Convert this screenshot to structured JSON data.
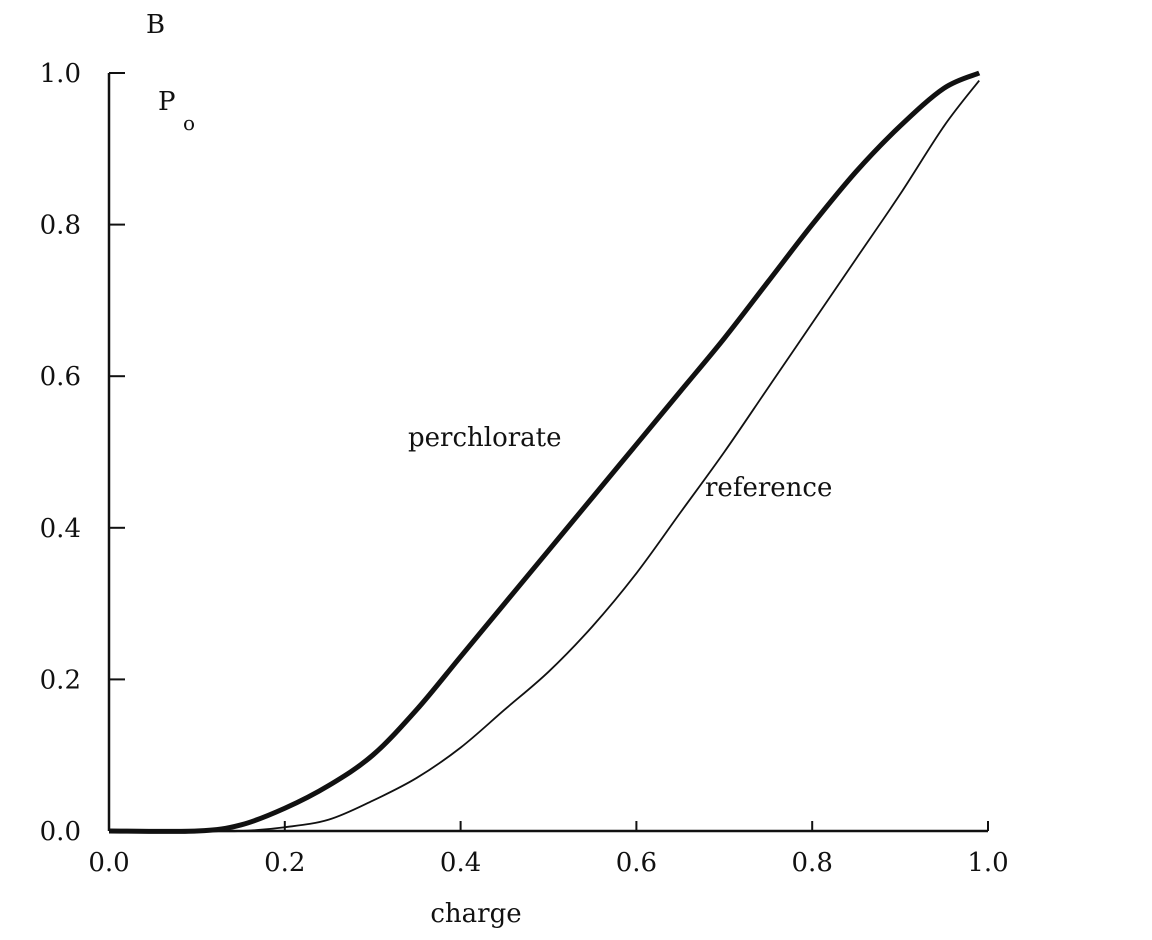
{
  "chart_data": {
    "type": "line",
    "panel_label": "B",
    "xlabel": "charge",
    "ylabel": "P",
    "ylabel_subscript": "o",
    "xlim": [
      0,
      1.0
    ],
    "ylim": [
      0,
      1.0
    ],
    "xticks": [
      "0.0",
      "0.2",
      "0.4",
      "0.6",
      "0.8",
      "1.0"
    ],
    "yticks": [
      "0.0",
      "0.2",
      "0.4",
      "0.6",
      "0.8",
      "1.0"
    ],
    "grid": false,
    "x": [
      0.0,
      0.1,
      0.15,
      0.2,
      0.25,
      0.3,
      0.35,
      0.4,
      0.45,
      0.5,
      0.55,
      0.6,
      0.65,
      0.7,
      0.75,
      0.8,
      0.85,
      0.9,
      0.95,
      0.99
    ],
    "series": [
      {
        "name": "perchlorate",
        "values": [
          0,
          0.0,
          0.008,
          0.03,
          0.06,
          0.1,
          0.16,
          0.23,
          0.3,
          0.37,
          0.44,
          0.51,
          0.58,
          0.65,
          0.725,
          0.8,
          0.87,
          0.93,
          0.98,
          1.0
        ]
      },
      {
        "name": "reference",
        "values": [
          0,
          0,
          0,
          0.005,
          0.015,
          0.04,
          0.07,
          0.11,
          0.16,
          0.21,
          0.27,
          0.34,
          0.42,
          0.5,
          0.585,
          0.67,
          0.755,
          0.84,
          0.93,
          0.99
        ]
      }
    ]
  }
}
